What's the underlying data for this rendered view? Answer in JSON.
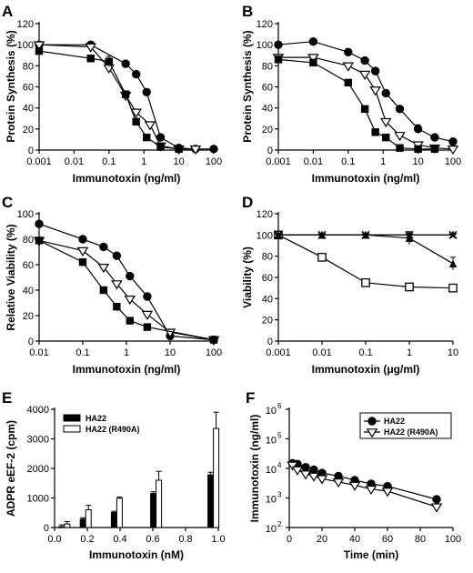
{
  "chart_data": [
    {
      "id": "A",
      "panel_label": "A",
      "type": "line",
      "xlabel": "Immunotoxin (ng/ml)",
      "ylabel": "Protein Synthesis (%)",
      "xscale": "log",
      "xlim": [
        0.001,
        100
      ],
      "ylim": [
        0,
        120
      ],
      "xticks": [
        0.001,
        0.01,
        0.1,
        1,
        10,
        100
      ],
      "xtick_labels": [
        "0.001",
        "0.01",
        "0.1",
        "1",
        "10",
        "100"
      ],
      "yticks": [
        0,
        20,
        40,
        60,
        80,
        100,
        120
      ],
      "ytick_labels": [
        "0",
        "20",
        "40",
        "60",
        "80",
        "100",
        "120"
      ],
      "series": [
        {
          "marker": "circle",
          "x": [
            0.001,
            0.03,
            0.3,
            0.6,
            1.2,
            3,
            10,
            30,
            100
          ],
          "y": [
            100,
            100,
            82,
            72,
            55,
            12,
            2,
            1,
            1
          ],
          "err": [
            0,
            0,
            0,
            0,
            0,
            0,
            0,
            0,
            0
          ]
        },
        {
          "marker": "triangle",
          "x": [
            0.001,
            0.03,
            0.1,
            0.3,
            0.6,
            1.5,
            3,
            10,
            30
          ],
          "y": [
            100,
            98,
            78,
            52,
            36,
            24,
            4,
            1,
            1
          ],
          "err": [
            0,
            4,
            0,
            0,
            0,
            0,
            0,
            0,
            0
          ]
        },
        {
          "marker": "square",
          "x": [
            0.001,
            0.03,
            0.1,
            0.3,
            0.6,
            1.2,
            3,
            10
          ],
          "y": [
            94,
            87,
            84,
            53,
            27,
            12,
            3,
            1
          ],
          "err": [
            0,
            0,
            5,
            0,
            0,
            0,
            0,
            0
          ]
        }
      ]
    },
    {
      "id": "B",
      "panel_label": "B",
      "type": "line",
      "xlabel": "Immunotoxin (ng/ml)",
      "ylabel": "Protein Synthesis (%)",
      "xscale": "log",
      "xlim": [
        0.001,
        100
      ],
      "ylim": [
        0,
        120
      ],
      "xticks": [
        0.001,
        0.01,
        0.1,
        1,
        10,
        100
      ],
      "xtick_labels": [
        "0.001",
        "0.01",
        "0.1",
        "1",
        "10",
        "100"
      ],
      "yticks": [
        0,
        20,
        40,
        60,
        80,
        100,
        120
      ],
      "ytick_labels": [
        "0",
        "20",
        "40",
        "60",
        "80",
        "100",
        "120"
      ],
      "series": [
        {
          "marker": "circle",
          "x": [
            0.001,
            0.01,
            0.1,
            0.3,
            0.6,
            1.2,
            3,
            10,
            30,
            100
          ],
          "y": [
            100,
            103,
            93,
            85,
            75,
            54,
            39,
            20,
            12,
            8
          ],
          "err": [
            0,
            0,
            0,
            0,
            0,
            0,
            0,
            4,
            0,
            0
          ]
        },
        {
          "marker": "triangle",
          "x": [
            0.001,
            0.01,
            0.1,
            0.3,
            0.6,
            1.2,
            3,
            10,
            30,
            100
          ],
          "y": [
            88,
            88,
            80,
            72,
            57,
            27,
            14,
            5,
            2,
            1
          ],
          "err": [
            0,
            0,
            0,
            0,
            0,
            0,
            0,
            0,
            0,
            0
          ]
        },
        {
          "marker": "square",
          "x": [
            0.001,
            0.01,
            0.1,
            0.3,
            0.6,
            1.2,
            3,
            10,
            30
          ],
          "y": [
            86,
            83,
            64,
            39,
            17,
            12,
            2,
            1,
            1
          ],
          "err": [
            0,
            0,
            0,
            0,
            0,
            0,
            0,
            0,
            0
          ]
        }
      ]
    },
    {
      "id": "C",
      "panel_label": "C",
      "type": "line",
      "xlabel": "Immunotoxin (ng/ml)",
      "ylabel": "Relative Viability (%)",
      "xscale": "log",
      "xlim": [
        0.01,
        100
      ],
      "ylim": [
        0,
        100
      ],
      "xticks": [
        0.01,
        0.1,
        1,
        10,
        100
      ],
      "xtick_labels": [
        "0.01",
        "0.1",
        "1",
        "10",
        "100"
      ],
      "yticks": [
        0,
        20,
        40,
        60,
        80,
        100
      ],
      "ytick_labels": [
        "0",
        "20",
        "40",
        "60",
        "80",
        "100"
      ],
      "series": [
        {
          "marker": "circle",
          "x": [
            0.01,
            0.1,
            0.3,
            0.6,
            1.2,
            3,
            10,
            100
          ],
          "y": [
            92,
            80,
            74,
            67,
            51,
            35,
            4,
            1
          ],
          "err": [
            0,
            0,
            0,
            0,
            0,
            0,
            0,
            0
          ]
        },
        {
          "marker": "triangle",
          "x": [
            0.01,
            0.1,
            0.3,
            0.6,
            1.2,
            3,
            10,
            100
          ],
          "y": [
            79,
            71,
            58,
            45,
            33,
            21,
            7,
            1
          ],
          "err": [
            0,
            0,
            0,
            0,
            0,
            0,
            0,
            0
          ]
        },
        {
          "marker": "square",
          "x": [
            0.01,
            0.1,
            0.3,
            0.6,
            1.2,
            3,
            100
          ],
          "y": [
            79,
            62,
            40,
            27,
            16,
            11,
            1
          ],
          "err": [
            0,
            0,
            0,
            0,
            0,
            0,
            0
          ]
        }
      ]
    },
    {
      "id": "D",
      "panel_label": "D",
      "type": "line",
      "xlabel": "Immunotoxin (μg/ml)",
      "ylabel": "Viability (%)",
      "xscale": "log",
      "xlim": [
        0.001,
        10
      ],
      "ylim": [
        0,
        120
      ],
      "xticks": [
        0.001,
        0.01,
        0.1,
        1,
        10
      ],
      "xtick_labels": [
        "0.001",
        "0.01",
        "0.1",
        "1",
        "10"
      ],
      "yticks": [
        0,
        20,
        40,
        60,
        80,
        100,
        120
      ],
      "ytick_labels": [
        "0",
        "20",
        "40",
        "60",
        "80",
        "100",
        "120"
      ],
      "series": [
        {
          "marker": "square_open",
          "x": [
            0.001,
            0.01,
            0.1,
            1,
            10
          ],
          "y": [
            100,
            79,
            55,
            51,
            50
          ],
          "err": [
            0,
            0,
            0,
            0,
            0
          ]
        },
        {
          "marker": "triangle_up",
          "x": [
            0.001,
            0.01,
            0.1,
            1,
            10
          ],
          "y": [
            100,
            100,
            100,
            97,
            73
          ],
          "err": [
            0,
            0,
            0,
            6,
            6
          ]
        },
        {
          "marker": "star",
          "x": [
            0.001,
            0.01,
            0.1,
            1,
            10
          ],
          "y": [
            100,
            100,
            100,
            100,
            100
          ],
          "err": [
            0,
            0,
            0,
            0,
            0
          ]
        },
        {
          "marker": "x",
          "x": [
            0.001,
            0.01,
            0.1,
            1,
            10
          ],
          "y": [
            100,
            100,
            100,
            100,
            100
          ],
          "err": [
            0,
            0,
            0,
            0,
            0
          ]
        }
      ]
    },
    {
      "id": "E",
      "panel_label": "E",
      "type": "bar",
      "xlabel": "Immunotoxin (nM)",
      "ylabel": "ADPR eEF-2 (cpm)",
      "xscale": "linear",
      "xlim": [
        0,
        1
      ],
      "ylim": [
        0,
        4000
      ],
      "xticks": [
        0,
        0.2,
        0.4,
        0.6,
        0.8,
        1
      ],
      "xtick_labels": [
        "0.0",
        "0.2",
        "0.4",
        "0.6",
        "0.8",
        "1.0"
      ],
      "yticks": [
        0,
        1000,
        2000,
        3000,
        4000
      ],
      "ytick_labels": [
        "0",
        "1000",
        "2000",
        "3000",
        "4000"
      ],
      "x": [
        0.06,
        0.19,
        0.38,
        0.62,
        0.97
      ],
      "series": [
        {
          "name": "HA22",
          "fill": "black",
          "values": [
            30,
            280,
            510,
            1150,
            1780
          ],
          "err": [
            60,
            50,
            40,
            60,
            90
          ]
        },
        {
          "name": "HA22 (R490A)",
          "fill": "white",
          "values": [
            120,
            600,
            990,
            1600,
            3350
          ],
          "err": [
            80,
            150,
            40,
            300,
            550
          ]
        }
      ]
    },
    {
      "id": "F",
      "panel_label": "F",
      "type": "line",
      "xlabel": "Time (min)",
      "ylabel": "Immunotoxin (ng/ml)",
      "xscale": "linear",
      "yscale": "log",
      "xlim": [
        0,
        100
      ],
      "ylim": [
        100,
        1000000
      ],
      "xticks": [
        0,
        20,
        40,
        60,
        80,
        100
      ],
      "xtick_labels": [
        "0",
        "20",
        "40",
        "60",
        "80",
        "100"
      ],
      "yticks": [
        100,
        1000,
        10000,
        100000,
        1000000
      ],
      "ytick_labels": [
        "10",
        "10",
        "10",
        "10",
        "10"
      ],
      "ytick_exponents": [
        "2",
        "3",
        "4",
        "5",
        "6"
      ],
      "series": [
        {
          "name": "HA22",
          "marker": "circle",
          "x": [
            2,
            5,
            10,
            15,
            20,
            30,
            40,
            50,
            60,
            90
          ],
          "y": [
            15000,
            14000,
            11000,
            9000,
            7000,
            5500,
            4000,
            3000,
            2500,
            900
          ]
        },
        {
          "name": "HA22 (R490A)",
          "marker": "triangle",
          "x": [
            2,
            5,
            10,
            15,
            20,
            30,
            40,
            50,
            60,
            90
          ],
          "y": [
            13000,
            9000,
            6500,
            5500,
            4500,
            3500,
            2700,
            2000,
            1700,
            500
          ]
        }
      ]
    }
  ]
}
